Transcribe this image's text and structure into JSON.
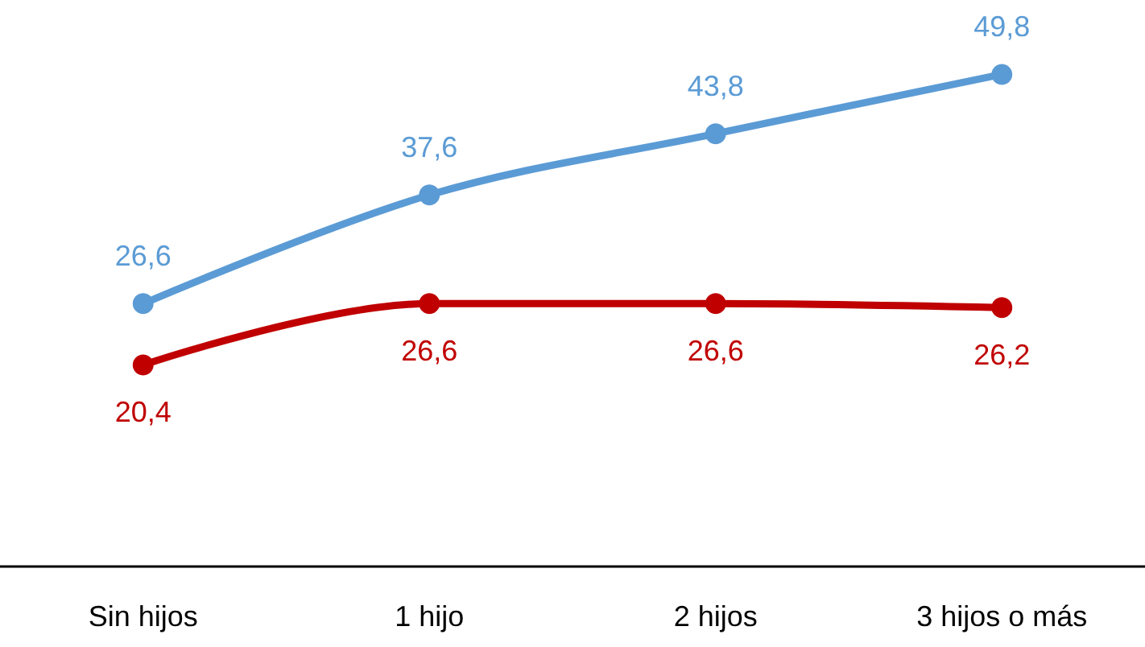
{
  "chart_data": {
    "type": "line",
    "categories": [
      "Sin hijos",
      "1 hijo",
      "2 hijos",
      "3 hijos o más"
    ],
    "series": [
      {
        "color": "#5b9bd5",
        "values": [
          26.6,
          37.6,
          43.8,
          49.8
        ],
        "value_labels": [
          "26,6",
          "37,6",
          "43,8",
          "49,8"
        ]
      },
      {
        "color": "#c00000",
        "values": [
          20.4,
          26.6,
          26.6,
          26.2
        ],
        "value_labels": [
          "20,4",
          "26,6",
          "26,6",
          "26,2"
        ]
      }
    ],
    "grid": false,
    "marker": "circle",
    "line_style": "solid"
  }
}
